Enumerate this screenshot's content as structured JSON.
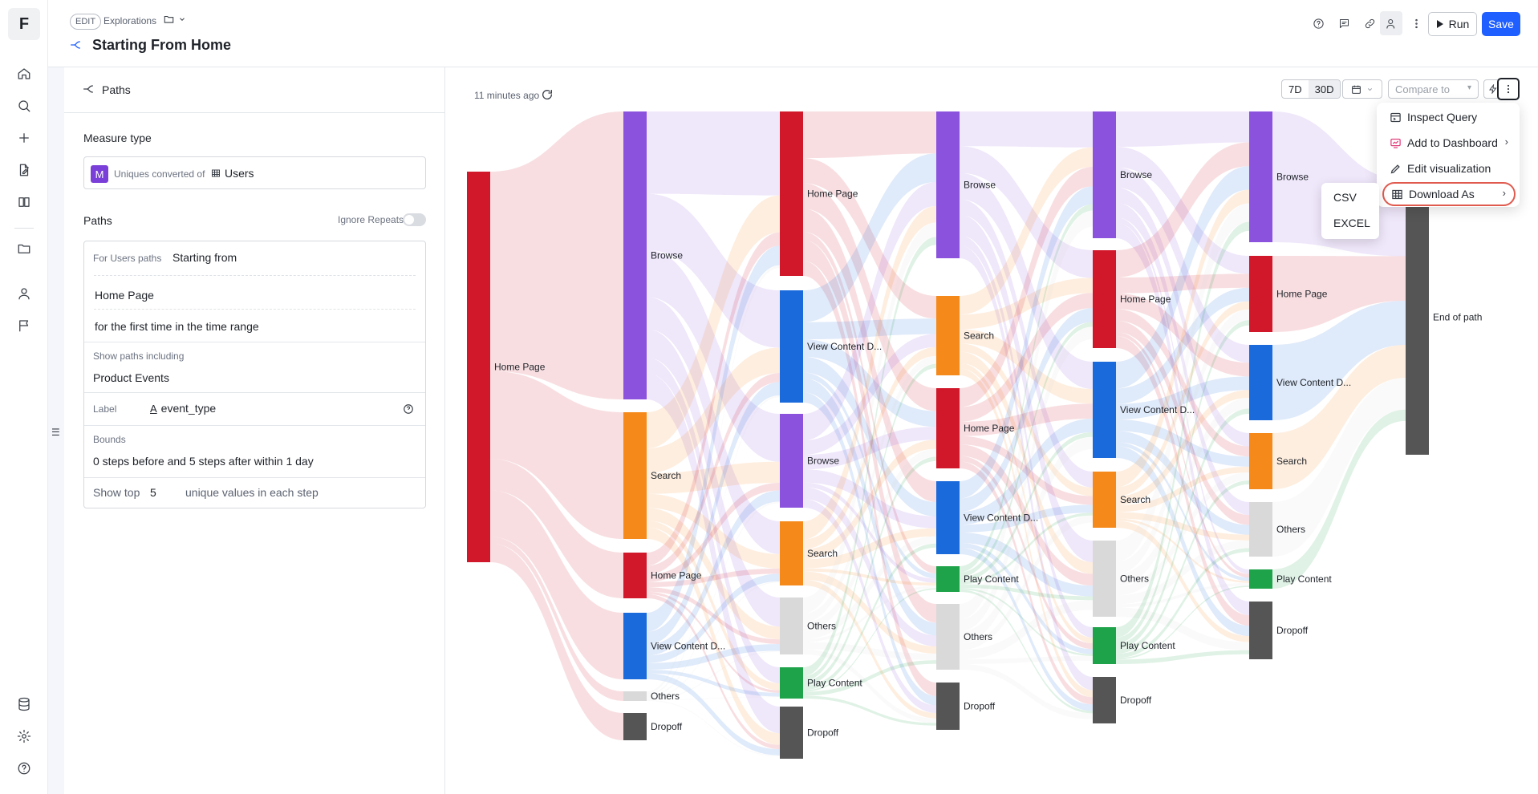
{
  "app": {
    "logo": "F"
  },
  "leftnav": {
    "icons": [
      "home-icon",
      "search-icon",
      "plus-icon",
      "file-edit-icon",
      "book-icon",
      "folder-icon",
      "user-icon",
      "flag-icon",
      "database-icon",
      "gear-icon",
      "help-icon"
    ]
  },
  "header": {
    "edit_badge": "EDIT",
    "breadcrumb": "Explorations",
    "title": "Starting From Home",
    "run_label": "Run",
    "save_label": "Save"
  },
  "panel": {
    "header_label": "Paths",
    "measure_type_title": "Measure type",
    "measure_badge": "M",
    "measure_text": "Uniques converted of",
    "measure_entity": "Users",
    "paths_title": "Paths",
    "ignore_repeats": "Ignore Repeats",
    "for_users_paths": "For Users paths",
    "starting_from": "Starting from",
    "start_event": "Home Page",
    "first_time_text": "for the first time in the time range",
    "show_paths_including": "Show paths including",
    "product_events": "Product Events",
    "label_title": "Label",
    "label_value": "event_type",
    "bounds_title": "Bounds",
    "bounds_value": "0 steps before and 5 steps after within 1 day",
    "show_top": "Show top",
    "show_top_value": "5",
    "unique_values_text": "unique values in each step"
  },
  "toolbar": {
    "updated": "11 minutes ago",
    "range_7d": "7D",
    "range_30d": "30D",
    "compare_to": "Compare to"
  },
  "menu": {
    "inspect_query": "Inspect Query",
    "add_to_dashboard": "Add to Dashboard",
    "edit_visualization": "Edit visualization",
    "download_as": "Download As",
    "csv": "CSV",
    "excel": "EXCEL"
  },
  "colors": {
    "home_page": "#d0182a",
    "browse": "#8b52de",
    "search": "#f5891a",
    "view_content": "#1a6adb",
    "play_content": "#1fa34a",
    "others": "#d9d9d9",
    "dropoff": "#555555",
    "accent": "#1f5eff"
  },
  "chart_data": {
    "type": "sankey",
    "steps": [
      {
        "nodes": [
          {
            "label": "Home Page"
          }
        ]
      },
      {
        "nodes": [
          {
            "label": "Browse"
          },
          {
            "label": "Search"
          },
          {
            "label": "Home Page"
          },
          {
            "label": "View Content D..."
          },
          {
            "label": "Others"
          },
          {
            "label": "Dropoff"
          }
        ]
      },
      {
        "nodes": [
          {
            "label": "Home Page"
          },
          {
            "label": "View Content D..."
          },
          {
            "label": "Browse"
          },
          {
            "label": "Search"
          },
          {
            "label": "Others"
          },
          {
            "label": "Play Content"
          },
          {
            "label": "Dropoff"
          }
        ]
      },
      {
        "nodes": [
          {
            "label": "Browse"
          },
          {
            "label": "Search"
          },
          {
            "label": "Home Page"
          },
          {
            "label": "View Content D..."
          },
          {
            "label": "Play Content"
          },
          {
            "label": "Others"
          },
          {
            "label": "Dropoff"
          }
        ]
      },
      {
        "nodes": [
          {
            "label": "Browse"
          },
          {
            "label": "Home Page"
          },
          {
            "label": "View Content D..."
          },
          {
            "label": "Search"
          },
          {
            "label": "Others"
          },
          {
            "label": "Play Content"
          },
          {
            "label": "Dropoff"
          }
        ]
      },
      {
        "nodes": [
          {
            "label": "Browse"
          },
          {
            "label": "Home Page"
          },
          {
            "label": "View Content D..."
          },
          {
            "label": "Search"
          },
          {
            "label": "Others"
          },
          {
            "label": "Play Content"
          },
          {
            "label": "Dropoff"
          }
        ]
      },
      {
        "nodes": [
          {
            "label": "End of path"
          }
        ]
      }
    ]
  }
}
